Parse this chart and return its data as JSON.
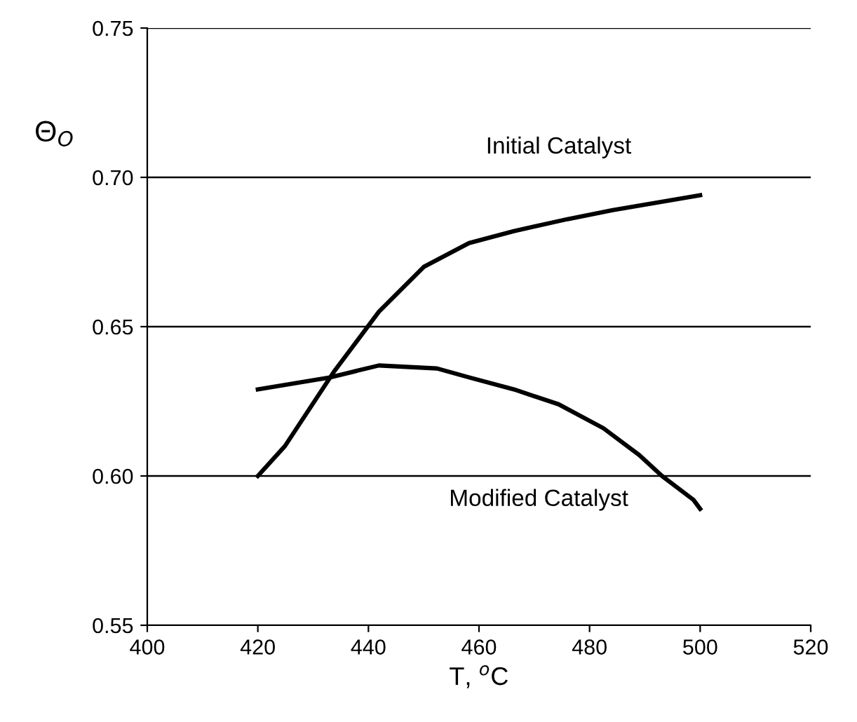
{
  "chart_data": {
    "type": "line",
    "xlabel": "T, $^{o}$C",
    "ylabel": "Θ$_{O}$",
    "xlim": [
      400,
      520
    ],
    "xticks": [
      400,
      420,
      440,
      460,
      480,
      500,
      520
    ],
    "ylim": [
      0.55,
      0.75
    ],
    "yticks": [
      {
        "value": 0.55,
        "label": "0.55"
      },
      {
        "value": 0.6,
        "label": "0.60"
      },
      {
        "value": 0.65,
        "label": "0.65"
      },
      {
        "value": 0.7,
        "label": "0.70"
      },
      {
        "value": 0.75,
        "label": "0.75"
      }
    ],
    "grid": "y",
    "marker": "none",
    "line_style": "solid",
    "series": [
      {
        "color": "#000000",
        "x": [
          420,
          424.9,
          433.8,
          441.9,
          450,
          458.2,
          466.3,
          476,
          484.2,
          500
        ],
        "values": [
          0.6,
          0.61,
          0.635,
          0.655,
          0.67,
          0.678,
          0.682,
          0.686,
          0.689,
          0.694
        ]
      },
      {
        "color": "#000000",
        "x": [
          420,
          433,
          441.9,
          452.4,
          458.2,
          466.3,
          474.4,
          482.5,
          489,
          493.1,
          498.8,
          500
        ],
        "values": [
          0.629,
          0.633,
          0.637,
          0.636,
          0.633,
          0.629,
          0.624,
          0.616,
          0.607,
          0.6,
          0.592,
          0.589
        ]
      }
    ],
    "annotations": [
      "Initial Catalyst",
      "Modified Catalyst"
    ]
  }
}
